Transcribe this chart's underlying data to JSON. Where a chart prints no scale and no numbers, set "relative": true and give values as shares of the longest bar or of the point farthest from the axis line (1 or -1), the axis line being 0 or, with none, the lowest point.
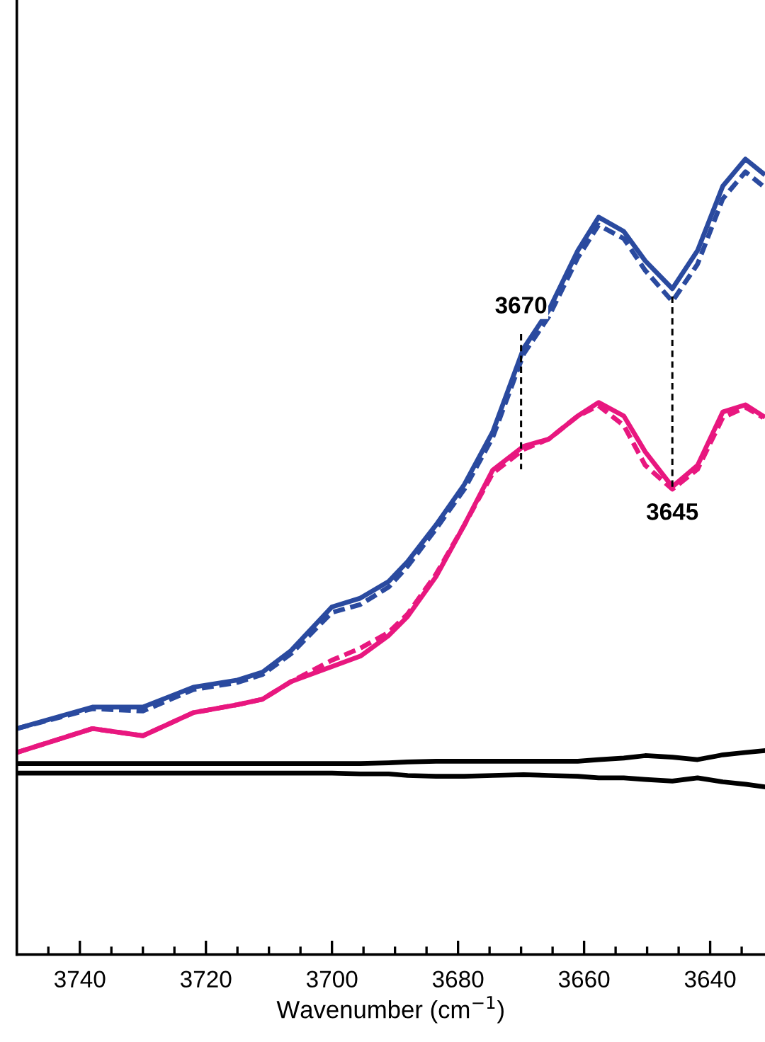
{
  "chart_data": {
    "type": "line",
    "relative": true,
    "xlabel": "Wavenumber (cm$^{−1}$)",
    "x": [
      3750,
      3738,
      3730,
      3722,
      3715,
      3711,
      3706.5,
      3700,
      3695.5,
      3691,
      3688,
      3683.5,
      3679,
      3674.5,
      3669.6,
      3665.6,
      3661,
      3657.7,
      3653.7,
      3650.3,
      3646,
      3642,
      3638,
      3634.4,
      3631.6
    ],
    "series": [
      {
        "color": "#2a4a9f",
        "line_style": "solid",
        "values": [
          0.284,
          0.311,
          0.311,
          0.336,
          0.345,
          0.355,
          0.382,
          0.437,
          0.448,
          0.469,
          0.494,
          0.54,
          0.591,
          0.657,
          0.762,
          0.81,
          0.885,
          0.927,
          0.909,
          0.872,
          0.837,
          0.885,
          0.966,
          1.0,
          0.982
        ]
      },
      {
        "color": "#2a4a9f",
        "line_style": "dashed",
        "values": [
          0.284,
          0.309,
          0.306,
          0.333,
          0.342,
          0.352,
          0.378,
          0.43,
          0.44,
          0.462,
          0.488,
          0.535,
          0.585,
          0.65,
          0.755,
          0.802,
          0.876,
          0.917,
          0.9,
          0.86,
          0.821,
          0.868,
          0.95,
          0.984,
          0.966
        ]
      },
      {
        "color": "#e8177f",
        "line_style": "solid",
        "values": [
          0.254,
          0.284,
          0.275,
          0.304,
          0.314,
          0.321,
          0.343,
          0.362,
          0.375,
          0.401,
          0.425,
          0.475,
          0.54,
          0.609,
          0.639,
          0.648,
          0.677,
          0.694,
          0.677,
          0.632,
          0.588,
          0.615,
          0.682,
          0.691,
          0.677
        ]
      },
      {
        "color": "#e8177f",
        "line_style": "dashed",
        "values": [
          0.254,
          0.284,
          0.275,
          0.304,
          0.314,
          0.321,
          0.343,
          0.37,
          0.385,
          0.405,
          0.428,
          0.478,
          0.54,
          0.605,
          0.635,
          0.648,
          0.677,
          0.69,
          0.665,
          0.615,
          0.585,
          0.61,
          0.675,
          0.688,
          0.675
        ]
      },
      {
        "color": "#000000",
        "line_style": "solid",
        "values": [
          0.24,
          0.24,
          0.24,
          0.24,
          0.24,
          0.24,
          0.24,
          0.24,
          0.24,
          0.241,
          0.242,
          0.243,
          0.243,
          0.243,
          0.243,
          0.243,
          0.243,
          0.245,
          0.247,
          0.25,
          0.248,
          0.245,
          0.251,
          0.254,
          0.256
        ]
      },
      {
        "color": "#000000",
        "line_style": "solid",
        "values": [
          0.228,
          0.228,
          0.228,
          0.228,
          0.228,
          0.228,
          0.228,
          0.228,
          0.227,
          0.227,
          0.225,
          0.224,
          0.224,
          0.225,
          0.226,
          0.225,
          0.224,
          0.222,
          0.222,
          0.22,
          0.218,
          0.222,
          0.217,
          0.214,
          0.211
        ]
      }
    ],
    "xlim": [
      3750,
      3631.3
    ],
    "xticks": [
      {
        "value": 3745,
        "label": null
      },
      3740,
      {
        "value": 3735,
        "label": null
      },
      {
        "value": 3730,
        "label": null
      },
      {
        "value": 3725,
        "label": null
      },
      3720,
      {
        "value": 3715,
        "label": null
      },
      {
        "value": 3710,
        "label": null
      },
      {
        "value": 3705,
        "label": null
      },
      3700,
      {
        "value": 3695,
        "label": null
      },
      {
        "value": 3690,
        "label": null
      },
      {
        "value": 3685,
        "label": null
      },
      3680,
      {
        "value": 3675,
        "label": null
      },
      {
        "value": 3670,
        "label": null
      },
      {
        "value": 3665,
        "label": null
      },
      3660,
      {
        "value": 3655,
        "label": null
      },
      {
        "value": 3650,
        "label": null
      },
      {
        "value": 3645,
        "label": null
      },
      3640,
      {
        "value": 3635,
        "label": null
      }
    ],
    "tick_labels": "x",
    "grid": false,
    "annotations": [
      {
        "text": "3670",
        "x": 3670,
        "y": 0.76
      },
      {
        "text": "3645",
        "x": 3646,
        "y": 0.588
      }
    ]
  }
}
